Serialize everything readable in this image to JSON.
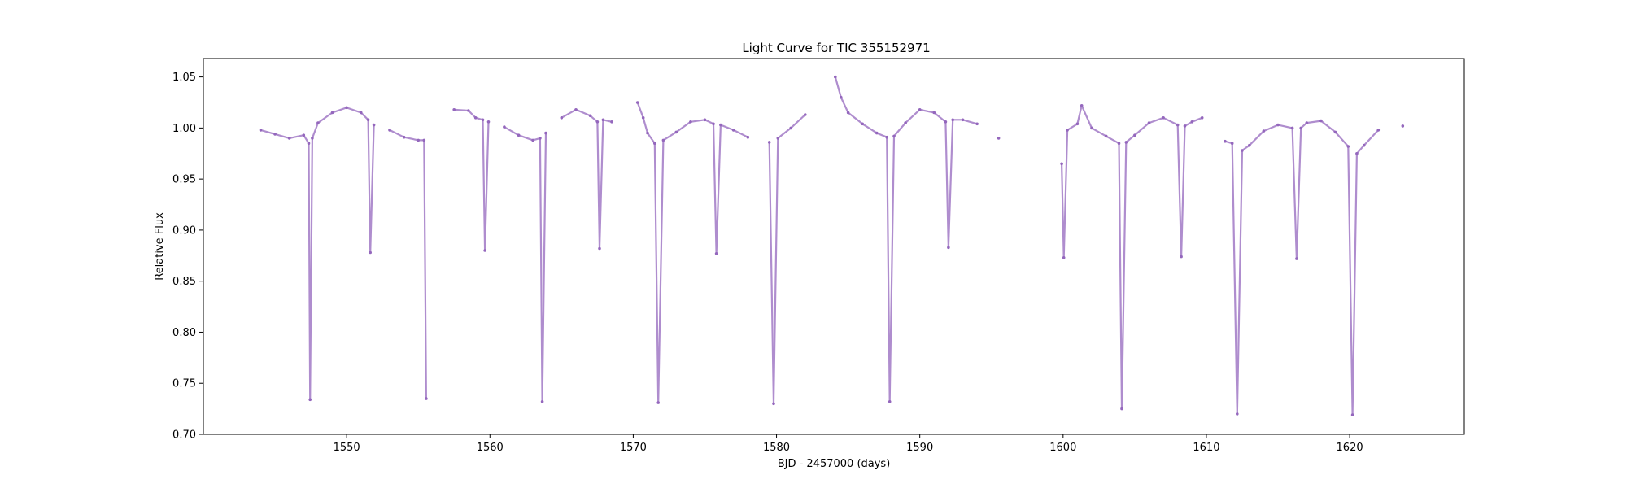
{
  "chart_data": {
    "type": "scatter",
    "title": "Light Curve for TIC 355152971",
    "xlabel": "BJD - 2457000 (days)",
    "ylabel": "Relative Flux",
    "xlim": [
      1540,
      1628
    ],
    "ylim": [
      0.7,
      1.068
    ],
    "x_ticks": [
      1550,
      1560,
      1570,
      1580,
      1590,
      1600,
      1610,
      1620
    ],
    "x_tick_labels": [
      "1550",
      "1560",
      "1570",
      "1580",
      "1590",
      "1600",
      "1610",
      "1620"
    ],
    "y_ticks": [
      0.7,
      0.75,
      0.8,
      0.85,
      0.9,
      0.95,
      1.0,
      1.05
    ],
    "y_tick_labels": [
      "0.70",
      "0.75",
      "0.80",
      "0.85",
      "0.90",
      "0.95",
      "1.00",
      "1.05"
    ],
    "grid": false,
    "marker_color": "#9467bd",
    "series": [
      {
        "points": [
          [
            1544.0,
            0.998
          ],
          [
            1545.0,
            0.994
          ],
          [
            1546.0,
            0.99
          ],
          [
            1547.0,
            0.993
          ],
          [
            1547.35,
            0.985
          ],
          [
            1547.45,
            0.734
          ],
          [
            1547.6,
            0.99
          ],
          [
            1548.0,
            1.005
          ],
          [
            1549.0,
            1.015
          ],
          [
            1550.0,
            1.02
          ],
          [
            1551.0,
            1.015
          ],
          [
            1551.5,
            1.008
          ],
          [
            1551.65,
            0.878
          ],
          [
            1551.9,
            1.003
          ],
          [
            1553.0,
            0.998
          ],
          [
            1554.0,
            0.991
          ],
          [
            1555.0,
            0.988
          ],
          [
            1555.4,
            0.988
          ],
          [
            1555.55,
            0.735
          ],
          [
            1557.5,
            1.018
          ],
          [
            1558.5,
            1.017
          ],
          [
            1559.0,
            1.01
          ],
          [
            1559.5,
            1.008
          ],
          [
            1559.65,
            0.88
          ],
          [
            1559.9,
            1.006
          ],
          [
            1561.0,
            1.001
          ],
          [
            1562.0,
            0.993
          ],
          [
            1563.0,
            0.988
          ],
          [
            1563.5,
            0.99
          ],
          [
            1563.65,
            0.732
          ],
          [
            1563.9,
            0.995
          ],
          [
            1565.0,
            1.01
          ],
          [
            1566.0,
            1.018
          ],
          [
            1567.0,
            1.012
          ],
          [
            1567.5,
            1.006
          ],
          [
            1567.65,
            0.882
          ],
          [
            1567.9,
            1.008
          ],
          [
            1568.5,
            1.006
          ],
          [
            1570.3,
            1.025
          ],
          [
            1570.7,
            1.01
          ],
          [
            1571.0,
            0.995
          ],
          [
            1571.5,
            0.985
          ],
          [
            1571.75,
            0.731
          ],
          [
            1572.1,
            0.988
          ],
          [
            1573.0,
            0.996
          ],
          [
            1574.0,
            1.006
          ],
          [
            1575.0,
            1.008
          ],
          [
            1575.6,
            1.004
          ],
          [
            1575.8,
            0.877
          ],
          [
            1576.1,
            1.003
          ],
          [
            1577.0,
            0.998
          ],
          [
            1578.0,
            0.991
          ],
          [
            1579.5,
            0.986
          ],
          [
            1579.8,
            0.73
          ],
          [
            1580.1,
            0.99
          ],
          [
            1581.0,
            1.0
          ],
          [
            1582.0,
            1.013
          ],
          [
            1584.1,
            1.05
          ],
          [
            1584.5,
            1.03
          ],
          [
            1585.0,
            1.015
          ],
          [
            1586.0,
            1.004
          ],
          [
            1587.0,
            0.995
          ],
          [
            1587.7,
            0.991
          ],
          [
            1587.9,
            0.732
          ],
          [
            1588.2,
            0.992
          ],
          [
            1589.0,
            1.005
          ],
          [
            1590.0,
            1.018
          ],
          [
            1591.0,
            1.015
          ],
          [
            1591.8,
            1.006
          ],
          [
            1592.0,
            0.883
          ],
          [
            1592.3,
            1.008
          ],
          [
            1593.0,
            1.008
          ],
          [
            1594.0,
            1.004
          ],
          [
            1595.5,
            0.99
          ],
          [
            1599.9,
            0.965
          ],
          [
            1600.05,
            0.873
          ],
          [
            1600.3,
            0.998
          ],
          [
            1601.0,
            1.004
          ],
          [
            1601.3,
            1.022
          ],
          [
            1602.0,
            1.0
          ],
          [
            1603.0,
            0.992
          ],
          [
            1603.9,
            0.985
          ],
          [
            1604.1,
            0.725
          ],
          [
            1604.4,
            0.986
          ],
          [
            1605.0,
            0.993
          ],
          [
            1606.0,
            1.005
          ],
          [
            1607.0,
            1.01
          ],
          [
            1608.0,
            1.003
          ],
          [
            1608.25,
            0.874
          ],
          [
            1608.5,
            1.002
          ],
          [
            1609.0,
            1.006
          ],
          [
            1609.7,
            1.01
          ],
          [
            1611.3,
            0.987
          ],
          [
            1611.8,
            0.985
          ],
          [
            1612.15,
            0.72
          ],
          [
            1612.5,
            0.978
          ],
          [
            1613.0,
            0.983
          ],
          [
            1614.0,
            0.997
          ],
          [
            1615.0,
            1.003
          ],
          [
            1616.0,
            1.0
          ],
          [
            1616.3,
            0.872
          ],
          [
            1616.6,
            1.0
          ],
          [
            1617.0,
            1.005
          ],
          [
            1618.0,
            1.007
          ],
          [
            1619.0,
            0.996
          ],
          [
            1619.9,
            0.982
          ],
          [
            1620.2,
            0.719
          ],
          [
            1620.5,
            0.975
          ],
          [
            1621.0,
            0.983
          ],
          [
            1622.0,
            0.998
          ],
          [
            1623.7,
            1.002
          ]
        ]
      }
    ]
  }
}
